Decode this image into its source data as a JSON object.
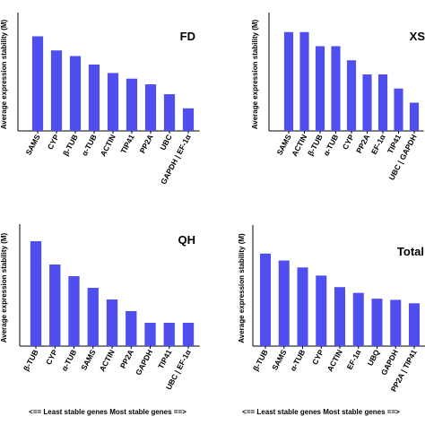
{
  "chart_data": [
    {
      "type": "bar",
      "title": "FD",
      "ylabel": "Average expression stability (M)",
      "categories": [
        "SAMS",
        "CYP",
        "β-TUB",
        "α-TUB",
        "ACTIN",
        "TIP41",
        "PP2A",
        "UBC",
        "GAPDH | EF-1α"
      ],
      "values": [
        0.67,
        0.57,
        0.53,
        0.47,
        0.41,
        0.37,
        0.33,
        0.26,
        0.16
      ],
      "color": "#4f4ff0",
      "ylim": [
        0,
        0.8
      ]
    },
    {
      "type": "bar",
      "title": "XS",
      "ylabel": "Average expression stability (M)",
      "categories": [
        "SAMS",
        "ACTIN",
        "β-TUB",
        "α-TUB",
        "CYP",
        "PP2A",
        "EF-1α",
        "TIP41",
        "UBC | GAPDH"
      ],
      "values": [
        0.7,
        0.7,
        0.6,
        0.6,
        0.5,
        0.4,
        0.4,
        0.3,
        0.2
      ],
      "color": "#4f4ff0",
      "ylim": [
        0,
        0.8
      ]
    },
    {
      "type": "bar",
      "title": "QH",
      "ylabel": "Average expression stability (M)",
      "xlabel": "<== Least stable genes  Most stable genes ==>",
      "categories": [
        "β-TUB",
        "CYP",
        "α-TUB",
        "SAMS",
        "ACTIN",
        "PP2A",
        "GAPDH",
        "TIP41",
        "UBC | EF-1α"
      ],
      "values": [
        0.9,
        0.7,
        0.6,
        0.5,
        0.4,
        0.3,
        0.2,
        0.2,
        0.2
      ],
      "color": "#4f4ff0",
      "ylim": [
        0,
        1
      ]
    },
    {
      "type": "bar",
      "title": "Total",
      "ylabel": "Average expression stability (M)",
      "xlabel": "<== Least stable genes  Most stable genes ==>",
      "categories": [
        "β-TUB",
        "SAMS",
        "α-TUB",
        "CYP",
        "ACTIN",
        "EF-1α",
        "UBQ",
        "GAPDH",
        "PP2A | TIP41"
      ],
      "values": [
        0.8,
        0.74,
        0.68,
        0.61,
        0.51,
        0.46,
        0.41,
        0.4,
        0.37
      ],
      "color": "#4f4ff0",
      "ylim": [
        0,
        1
      ]
    }
  ]
}
